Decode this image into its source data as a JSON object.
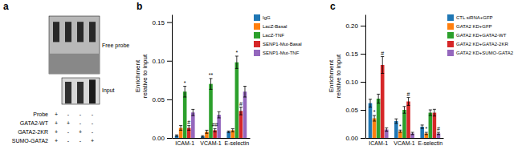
{
  "chart_data": [
    {
      "type": "gel",
      "title": "a",
      "annotations": [
        "Free probe",
        "Input"
      ],
      "categories": [
        "Probe",
        "GATA2-WT",
        "GATA2-2KR",
        "SUMO-GATA2"
      ],
      "cells": [
        [
          "+",
          "+",
          "+",
          "+"
        ],
        [
          "-",
          "+",
          "-",
          "-"
        ],
        [
          "-",
          "-",
          "+",
          "-"
        ],
        [
          "-",
          "-",
          "-",
          "+"
        ]
      ]
    },
    {
      "type": "bar",
      "title": "b",
      "ylabel": "Enrichment\nrelative to input",
      "categories": [
        "ICAM-1",
        "VCAM-1",
        "E-selectin"
      ],
      "series": [
        {
          "name": "IgG",
          "values": [
            0.003,
            0.002,
            0.008
          ],
          "errors": [
            0.001,
            0.001,
            0.001
          ]
        },
        {
          "name": "LacZ-Basal",
          "values": [
            0.013,
            0.008,
            0.01
          ],
          "errors": [
            0.003,
            0.002,
            0.002
          ]
        },
        {
          "name": "LacZ-TNF",
          "values": [
            0.06,
            0.07,
            0.098
          ],
          "errors": [
            0.007,
            0.007,
            0.008
          ],
          "annotations": [
            "*",
            "**",
            "*"
          ]
        },
        {
          "name": "SENP1-Mut-Basal",
          "values": [
            0.013,
            0.01,
            0.035
          ],
          "errors": [
            0.003,
            0.002,
            0.005
          ],
          "annotations": [
            "#",
            "##",
            "#"
          ]
        },
        {
          "name": "SENP1-Mut-TNF",
          "values": [
            0.033,
            0.03,
            0.06
          ],
          "errors": [
            0.004,
            0.004,
            0.007
          ]
        }
      ],
      "ylim": [
        0,
        0.16
      ],
      "yticks": [
        {
          "value": 0,
          "label": "0.00"
        },
        0.05,
        {
          "value": 0.1,
          "label": "0.10"
        },
        0.15
      ],
      "grid": false,
      "legend": "right"
    },
    {
      "type": "bar",
      "title": "c",
      "ylabel": "Enrichment\nrelative to input",
      "categories": [
        "ICAM-1",
        "VCAM-1",
        "E-selectin"
      ],
      "series": [
        {
          "name": "CTL siRNA+GFP",
          "values": [
            0.062,
            0.03,
            0.02
          ],
          "errors": [
            0.007,
            0.004,
            0.003
          ]
        },
        {
          "name": "GATA2 KD+GFP",
          "values": [
            0.035,
            0.012,
            0.008
          ],
          "errors": [
            0.005,
            0.002,
            0.002
          ],
          "annotations": [
            "*",
            "*",
            "*"
          ]
        },
        {
          "name": "GATA2 KD+GATA2-WT",
          "values": [
            0.07,
            0.05,
            0.045
          ],
          "errors": [
            0.008,
            0.006,
            0.005
          ]
        },
        {
          "name": "GATA2 KD+GATA2-2KR",
          "values": [
            0.13,
            0.065,
            0.045
          ],
          "errors": [
            0.015,
            0.007,
            0.006
          ],
          "annotations": [
            "#",
            "#",
            null
          ]
        },
        {
          "name": "GATA2 KD+SUMO-GATA2",
          "values": [
            0.015,
            0.008,
            0.008
          ],
          "errors": [
            0.003,
            0.002,
            0.002
          ],
          "annotations": [
            null,
            null,
            "#"
          ]
        }
      ],
      "ylim": [
        0,
        0.22
      ],
      "yticks": [
        {
          "value": 0,
          "label": "0.00"
        },
        0.05,
        {
          "value": 0.1,
          "label": "0.10"
        },
        0.15,
        {
          "value": 0.2,
          "label": "0.20"
        }
      ],
      "grid": false,
      "legend": "right"
    }
  ]
}
